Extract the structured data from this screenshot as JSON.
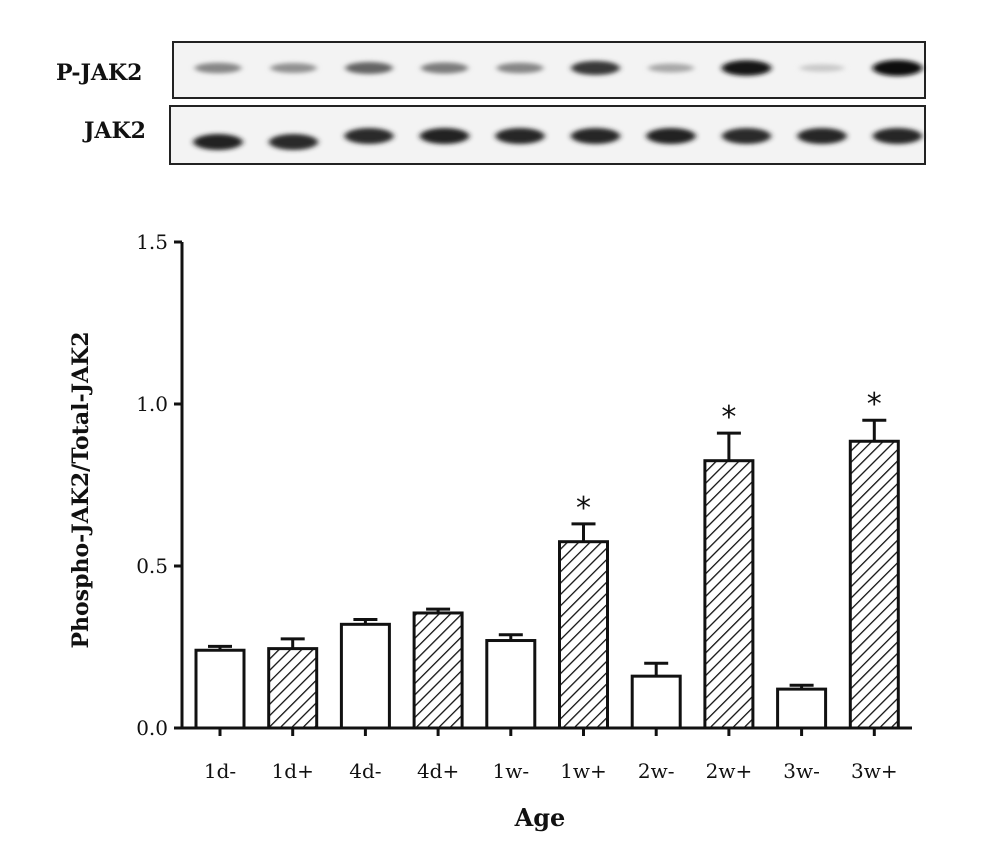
{
  "blot": {
    "rows": [
      {
        "label": "P-JAK2",
        "intensities": [
          0.45,
          0.4,
          0.6,
          0.5,
          0.45,
          0.8,
          0.3,
          0.95,
          0.15,
          1.0
        ]
      },
      {
        "label": "JAK2",
        "intensities": [
          0.9,
          0.85,
          0.85,
          0.9,
          0.88,
          0.88,
          0.9,
          0.85,
          0.88,
          0.88
        ]
      }
    ]
  },
  "chart_data": {
    "type": "bar",
    "xlabel": "Age",
    "ylabel": "Phospho-JAK2/Total-JAK2",
    "ylim": [
      0,
      1.5
    ],
    "yticks": [
      "0.0",
      "0.5",
      "1.0",
      "1.5"
    ],
    "categories": [
      "1d-",
      "1d+",
      "4d-",
      "4d+",
      "1w-",
      "1w+",
      "2w-",
      "2w+",
      "3w-",
      "3w+"
    ],
    "values": [
      0.24,
      0.245,
      0.32,
      0.355,
      0.27,
      0.575,
      0.16,
      0.825,
      0.12,
      0.885
    ],
    "errors": [
      0.012,
      0.03,
      0.015,
      0.012,
      0.018,
      0.055,
      0.04,
      0.085,
      0.012,
      0.065
    ],
    "hatched": [
      false,
      true,
      false,
      true,
      false,
      true,
      false,
      true,
      false,
      true
    ],
    "significance": [
      "",
      "",
      "",
      "",
      "",
      "*",
      "",
      "*",
      "",
      "*"
    ]
  }
}
